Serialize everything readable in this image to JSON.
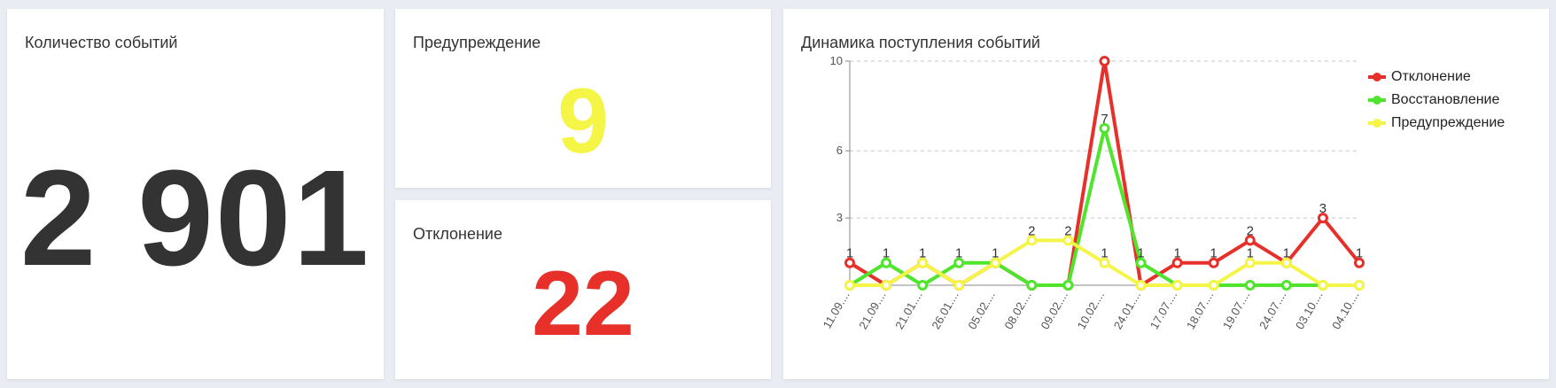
{
  "cards": {
    "total": {
      "title": "Количество событий",
      "value": "2 901"
    },
    "warning": {
      "title": "Предупреждение",
      "value": "9",
      "color": "#f5f547"
    },
    "deviation": {
      "title": "Отклонение",
      "value": "22",
      "color": "#e8302a"
    }
  },
  "chart_data": {
    "type": "line",
    "title": "Динамика поступления событий",
    "categories": [
      "11.09....",
      "21.09....",
      "21.01....",
      "26.01....",
      "05.02....",
      "08.02....",
      "09.02....",
      "10.02....",
      "24.01....",
      "17.07....",
      "18.07....",
      "19.07....",
      "24.07....",
      "03.10....",
      "04.10...."
    ],
    "y_ticks": [
      3,
      6,
      10
    ],
    "ylim": [
      0,
      10
    ],
    "grid": true,
    "legend_position": "top-right",
    "series": [
      {
        "name": "Отклонение",
        "color": "#e8302a",
        "values": [
          1,
          0,
          1,
          0,
          1,
          0,
          0,
          10,
          0,
          1,
          1,
          2,
          1,
          3,
          1
        ]
      },
      {
        "name": "Восстановление",
        "color": "#4ee52c",
        "values": [
          0,
          1,
          0,
          1,
          1,
          0,
          0,
          7,
          1,
          0,
          0,
          0,
          0,
          0,
          0
        ]
      },
      {
        "name": "Предупреждение",
        "color": "#f5f547",
        "values": [
          0,
          0,
          1,
          0,
          1,
          2,
          2,
          1,
          0,
          0,
          0,
          1,
          1,
          0,
          0
        ]
      }
    ],
    "data_labels": [
      {
        "category": "11.09....",
        "label": "1"
      },
      {
        "category": "21.09....",
        "label": "1"
      },
      {
        "category": "21.01....",
        "label": "1"
      },
      {
        "category": "26.01....",
        "label": "1"
      },
      {
        "category": "05.02....",
        "label": "1"
      },
      {
        "category": "08.02....",
        "label": "2"
      },
      {
        "category": "09.02....",
        "label": "2"
      },
      {
        "category": "10.02....",
        "label": "7"
      },
      {
        "category": "10.02....",
        "label": "1"
      },
      {
        "category": "24.01....",
        "label": "1"
      },
      {
        "category": "17.07....",
        "label": "1"
      },
      {
        "category": "18.07....",
        "label": "1"
      },
      {
        "category": "19.07....",
        "label": "2"
      },
      {
        "category": "19.07....",
        "label": "1"
      },
      {
        "category": "24.07....",
        "label": "1"
      },
      {
        "category": "03.10....",
        "label": "3"
      },
      {
        "category": "04.10....",
        "label": "1"
      }
    ]
  }
}
